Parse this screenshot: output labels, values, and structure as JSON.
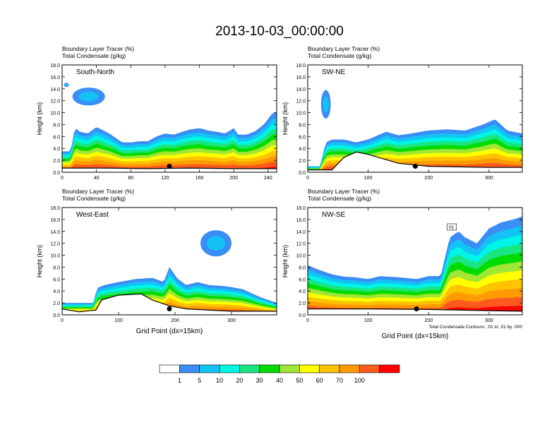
{
  "title": "2013-10-03_00:00:00",
  "chart_data": [
    {
      "type": "heatmap",
      "panel_label": "South-North",
      "header_lines": [
        "Boundary Layer Tracer   (%)",
        "Total Condensate   (g/kg)"
      ],
      "ylabel": "Height (km)",
      "xlabel": "",
      "ylim": [
        0,
        18
      ],
      "yticks": [
        "0.0",
        "2.0",
        "4.0",
        "6.0",
        "8.0",
        "10.0",
        "12.0",
        "14.0",
        "16.0",
        "18.0"
      ],
      "xlim": [
        0,
        250
      ],
      "xticks": [
        0,
        40,
        80,
        120,
        160,
        200,
        240
      ],
      "tracer_top": [
        [
          0,
          3.5
        ],
        [
          10,
          3.5
        ],
        [
          15,
          7.6
        ],
        [
          20,
          6.8
        ],
        [
          30,
          6.5
        ],
        [
          40,
          7.6
        ],
        [
          55,
          6.5
        ],
        [
          70,
          5.0
        ],
        [
          80,
          5.0
        ],
        [
          90,
          5.2
        ],
        [
          100,
          5.2
        ],
        [
          110,
          6.0
        ],
        [
          120,
          6.5
        ],
        [
          130,
          6.3
        ],
        [
          140,
          6.8
        ],
        [
          150,
          7.2
        ],
        [
          160,
          7.4
        ],
        [
          170,
          7.0
        ],
        [
          180,
          6.8
        ],
        [
          190,
          6.5
        ],
        [
          200,
          7.4
        ],
        [
          205,
          6.3
        ],
        [
          215,
          6.3
        ],
        [
          225,
          6.9
        ],
        [
          235,
          8.0
        ],
        [
          245,
          9.9
        ],
        [
          250,
          10.0
        ]
      ],
      "upper_cloud": [
        {
          "x": 2,
          "x2": 8,
          "y": 14.3,
          "y2": 15.0
        },
        {
          "x": 12,
          "x2": 50,
          "y": 11.2,
          "y2": 14.2
        }
      ],
      "terrain": [
        [
          0,
          0.7
        ],
        [
          50,
          0.7
        ],
        [
          100,
          0.6
        ],
        [
          150,
          0.7
        ],
        [
          200,
          0.6
        ],
        [
          250,
          0.6
        ]
      ],
      "marker": {
        "x": 125,
        "y": 1.0
      }
    },
    {
      "type": "heatmap",
      "panel_label": "SW-NE",
      "header_lines": [
        "Boundary Layer Tracer   (%)",
        "Total Condensate   (g/kg)"
      ],
      "ylabel": "Height (km)",
      "xlabel": "",
      "ylim": [
        0,
        18
      ],
      "yticks": [
        "0.0",
        "2.0",
        "4.0",
        "6.0",
        "8.0",
        "10.0",
        "12.0",
        "14.0",
        "16.0",
        "18.0"
      ],
      "xlim": [
        0,
        355
      ],
      "xticks": [
        0,
        100,
        200,
        300
      ],
      "tracer_top": [
        [
          0,
          1.0
        ],
        [
          20,
          1.0
        ],
        [
          30,
          5.0
        ],
        [
          40,
          5.5
        ],
        [
          60,
          5.5
        ],
        [
          80,
          5.0
        ],
        [
          100,
          5.5
        ],
        [
          130,
          6.8
        ],
        [
          150,
          6.2
        ],
        [
          170,
          6.5
        ],
        [
          200,
          7.0
        ],
        [
          230,
          7.2
        ],
        [
          260,
          7.0
        ],
        [
          290,
          8.0
        ],
        [
          310,
          8.9
        ],
        [
          330,
          7.0
        ],
        [
          355,
          6.5
        ]
      ],
      "upper_cloud": [
        {
          "x": 22,
          "x2": 38,
          "y": 9.0,
          "y2": 13.8
        }
      ],
      "terrain": [
        [
          0,
          0.4
        ],
        [
          40,
          0.4
        ],
        [
          60,
          2.5
        ],
        [
          80,
          3.4
        ],
        [
          100,
          3.0
        ],
        [
          150,
          1.5
        ],
        [
          200,
          1.0
        ],
        [
          300,
          0.8
        ],
        [
          355,
          0.8
        ]
      ],
      "marker": {
        "x": 178,
        "y": 1.0
      }
    },
    {
      "type": "heatmap",
      "panel_label": "West-East",
      "header_lines": [
        "Boundary Layer Tracer   (%)",
        "Total Condensate   (g/kg)"
      ],
      "ylabel": "Height (km)",
      "xlabel": "Grid Point (dx=15km)",
      "ylim": [
        0,
        18
      ],
      "yticks": [
        "0.0",
        "2.0",
        "4.0",
        "6.0",
        "8.0",
        "10.0",
        "12.0",
        "14.0",
        "16.0",
        "18.0"
      ],
      "xlim": [
        0,
        380
      ],
      "xticks": [
        0,
        100,
        200,
        300
      ],
      "tracer_top": [
        [
          0,
          2.0
        ],
        [
          30,
          2.0
        ],
        [
          55,
          2.0
        ],
        [
          62,
          4.5
        ],
        [
          75,
          5.0
        ],
        [
          100,
          5.5
        ],
        [
          130,
          6.0
        ],
        [
          160,
          6.2
        ],
        [
          180,
          5.5
        ],
        [
          190,
          8.0
        ],
        [
          205,
          6.0
        ],
        [
          220,
          5.0
        ],
        [
          240,
          5.5
        ],
        [
          260,
          5.0
        ],
        [
          290,
          4.8
        ],
        [
          320,
          4.3
        ],
        [
          350,
          3.0
        ],
        [
          380,
          2.0
        ]
      ],
      "upper_cloud": [
        {
          "x": 245,
          "x2": 300,
          "y": 9.8,
          "y2": 14.2
        }
      ],
      "terrain": [
        [
          0,
          1.0
        ],
        [
          30,
          0.5
        ],
        [
          60,
          0.8
        ],
        [
          70,
          2.5
        ],
        [
          100,
          3.3
        ],
        [
          140,
          3.5
        ],
        [
          160,
          2.5
        ],
        [
          190,
          1.5
        ],
        [
          220,
          1.0
        ],
        [
          300,
          0.6
        ],
        [
          380,
          0.6
        ]
      ],
      "marker": {
        "x": 190,
        "y": 1.0
      }
    },
    {
      "type": "heatmap",
      "panel_label": "NW-SE",
      "header_lines": [
        "Boundary Layer Tracer   (%)",
        "Total Condensate   (g/kg)"
      ],
      "ylabel": "Height (km)",
      "xlabel": "Grid Point (dx=15km)",
      "annotation": "Total Condensate Contours: .01 to .01 by .000",
      "contour_label": "01",
      "ylim": [
        0,
        18
      ],
      "yticks": [
        "0.0",
        "2.0",
        "4.0",
        "6.0",
        "8.0",
        "10.0",
        "12.0",
        "14.0",
        "16.0",
        "18.0"
      ],
      "xlim": [
        0,
        355
      ],
      "xticks": [
        0,
        100,
        200,
        300
      ],
      "tracer_top": [
        [
          0,
          8.3
        ],
        [
          20,
          7.5
        ],
        [
          40,
          6.8
        ],
        [
          60,
          6.4
        ],
        [
          80,
          6.3
        ],
        [
          100,
          6.0
        ],
        [
          120,
          6.5
        ],
        [
          150,
          6.3
        ],
        [
          180,
          6.0
        ],
        [
          200,
          6.5
        ],
        [
          220,
          6.5
        ],
        [
          235,
          13.0
        ],
        [
          250,
          14.0
        ],
        [
          260,
          13.0
        ],
        [
          280,
          12.0
        ],
        [
          300,
          14.5
        ],
        [
          320,
          15.5
        ],
        [
          340,
          16.0
        ],
        [
          355,
          16.5
        ]
      ],
      "upper_cloud": [],
      "terrain": [
        [
          0,
          1.0
        ],
        [
          100,
          1.0
        ],
        [
          200,
          0.9
        ],
        [
          300,
          0.7
        ],
        [
          355,
          0.6
        ]
      ],
      "marker": {
        "x": 180,
        "y": 1.0
      }
    }
  ],
  "colorbar": {
    "levels": [
      "1",
      "5",
      "10",
      "20",
      "30",
      "40",
      "50",
      "60",
      "70",
      "100"
    ],
    "colors": [
      "#ffffff",
      "#3a8ef5",
      "#14c3f5",
      "#00f5e6",
      "#19e680",
      "#00dc00",
      "#a0e632",
      "#ffff00",
      "#ffc300",
      "#ff9b00",
      "#ff5a1e",
      "#ff0000"
    ]
  }
}
